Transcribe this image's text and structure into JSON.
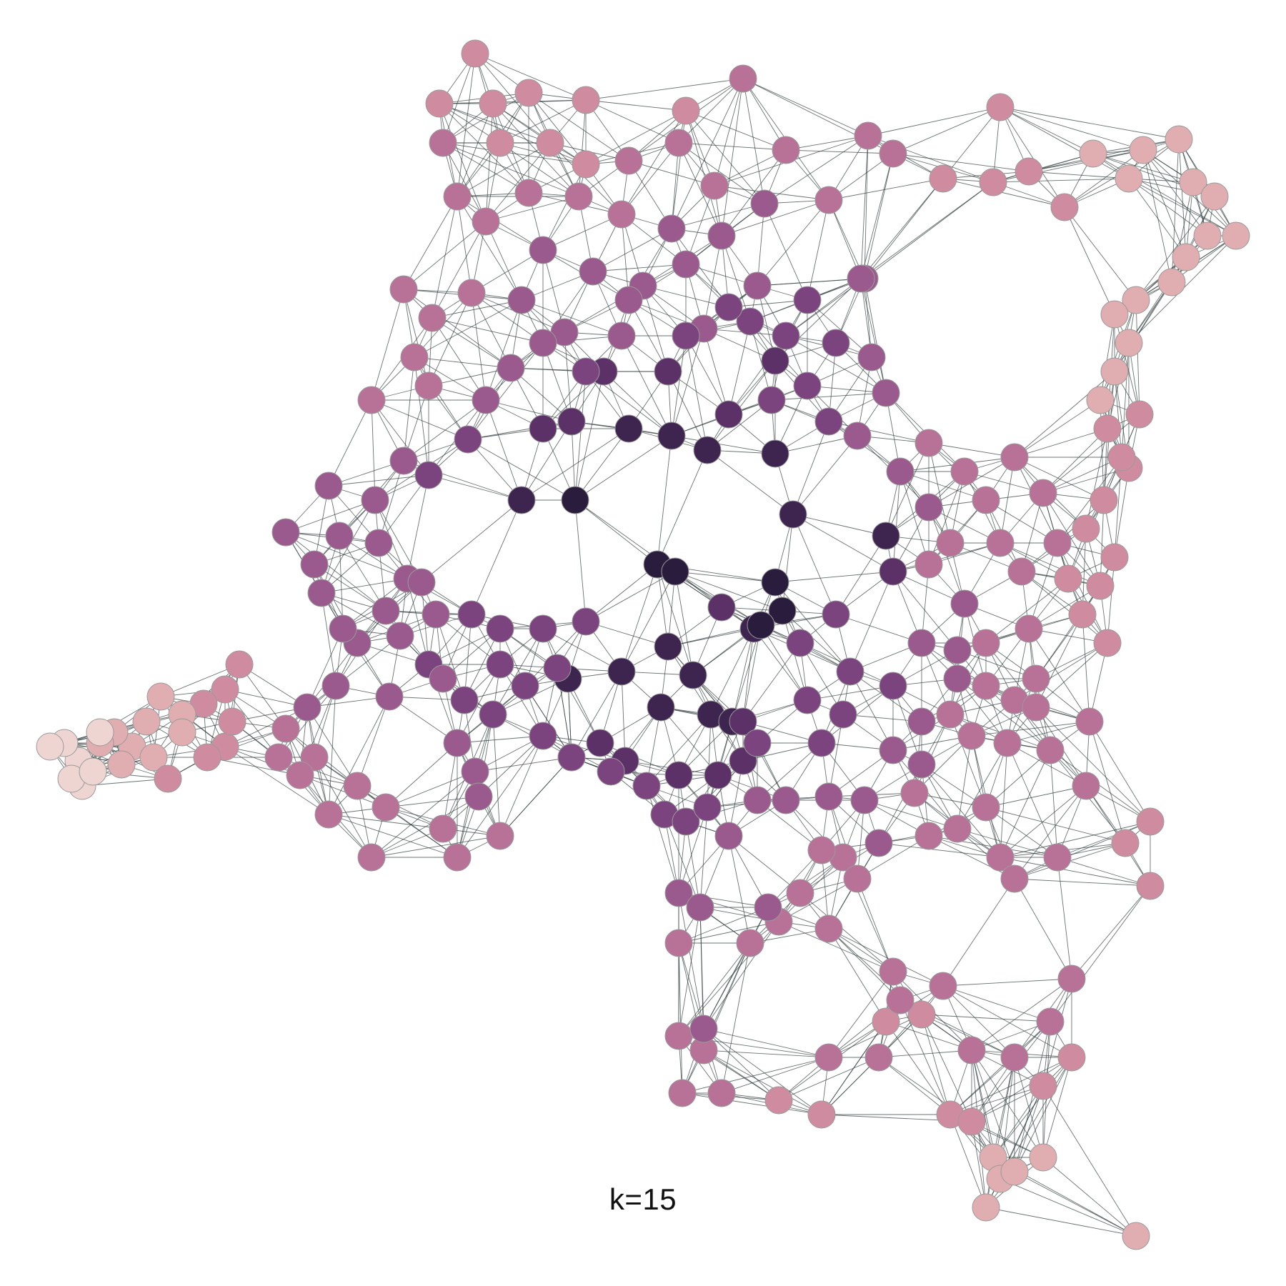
{
  "figure": {
    "caption": "k=15",
    "colors": {
      "edge": "#2f3b3b",
      "node_outline": "#9a9a9a",
      "palette_light_to_dark": [
        "#efd5d2",
        "#e0adb0",
        "#cf8ca0",
        "#b87298",
        "#9a5a8e",
        "#7b447e",
        "#5b3167",
        "#3d2550",
        "#2a1c3d"
      ]
    },
    "node_levels_count": 9
  }
}
